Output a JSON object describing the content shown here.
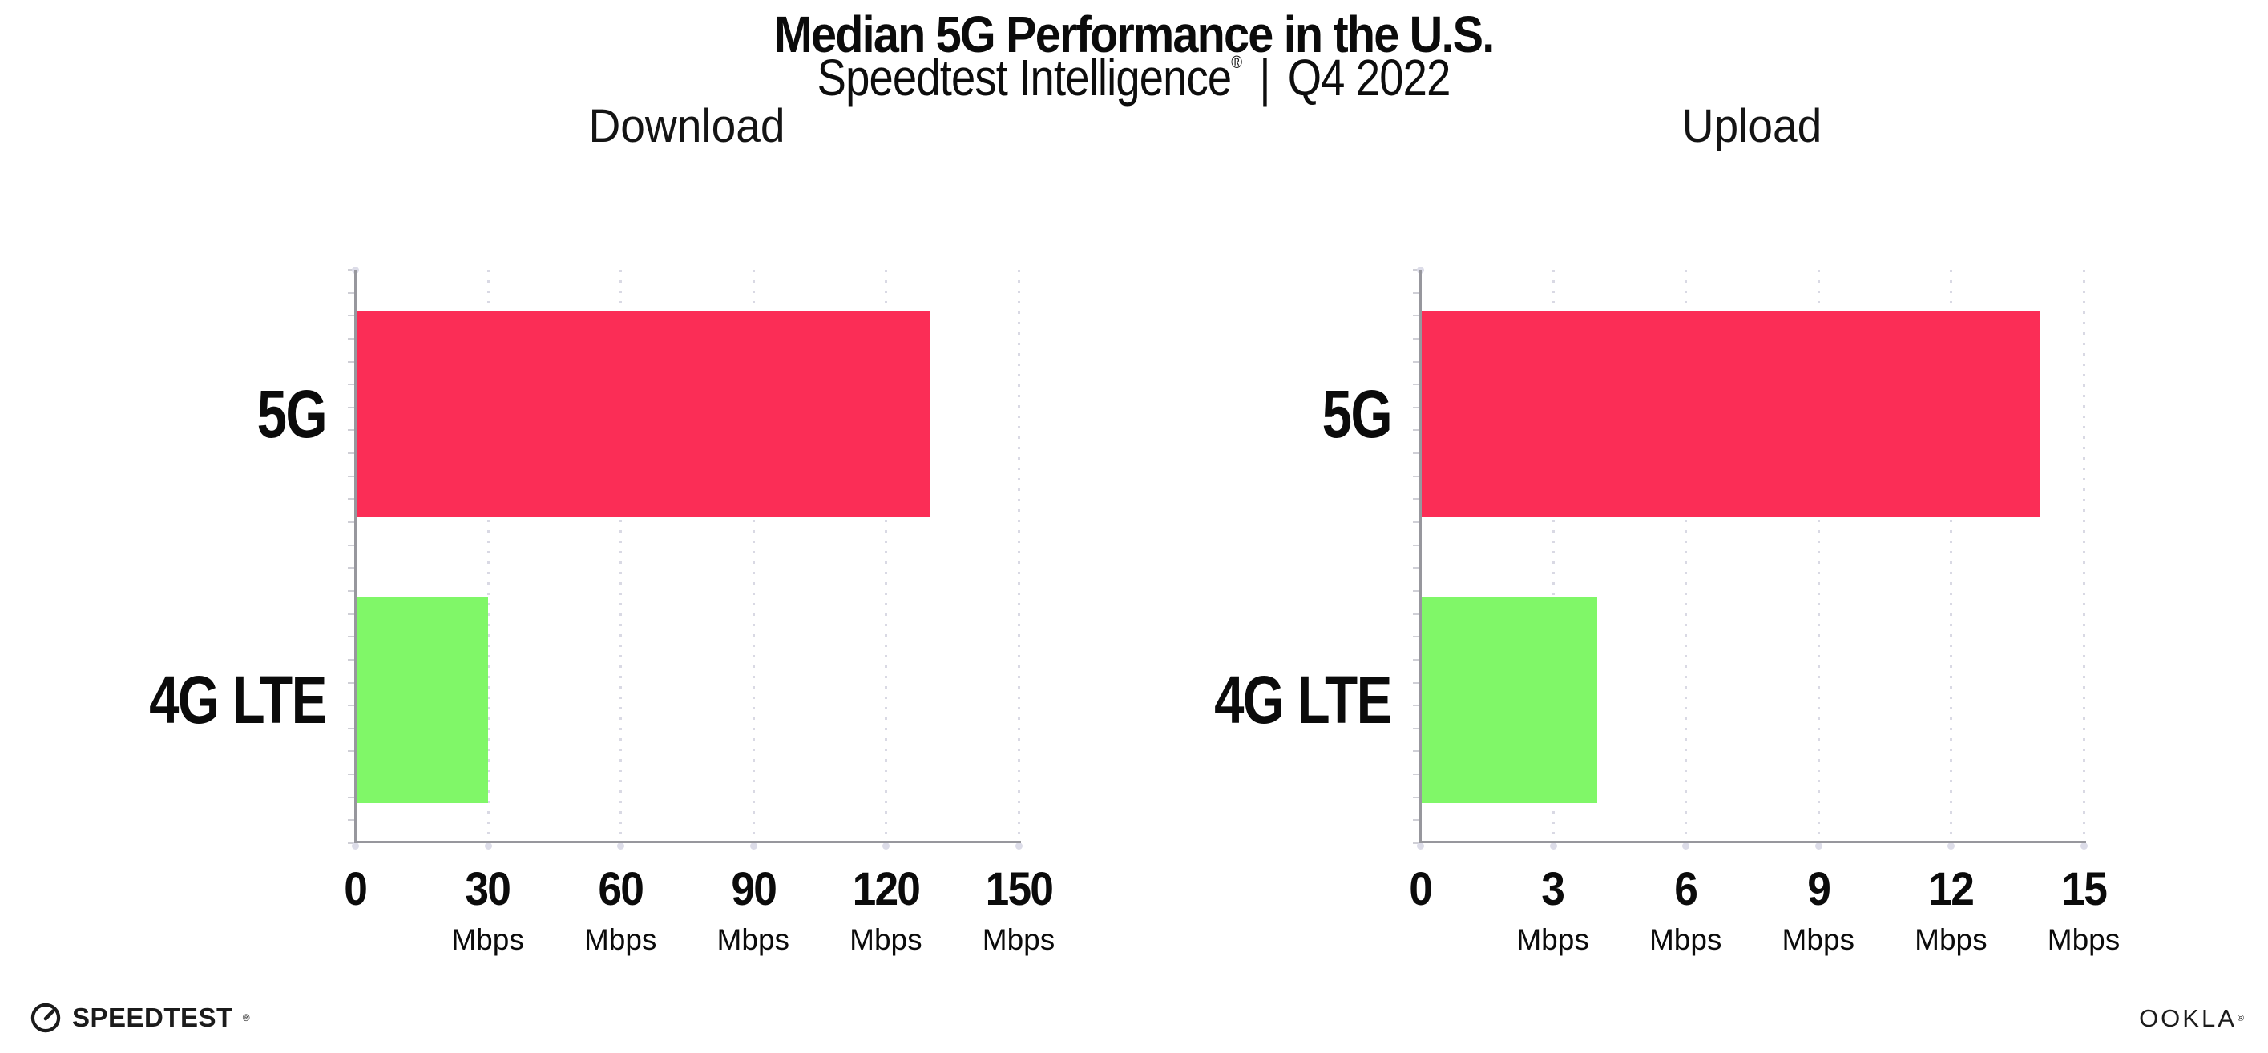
{
  "header": {
    "title": "Median 5G Performance in the U.S.",
    "subtitle_brand": "Speedtest Intelligence",
    "subtitle_reg": "®",
    "subtitle_sep": "|",
    "subtitle_period": "Q4 2022"
  },
  "chart_data": [
    {
      "type": "bar",
      "orientation": "horizontal",
      "title": "Download",
      "categories": [
        "5G",
        "4G LTE"
      ],
      "values": [
        130,
        30
      ],
      "unit": "Mbps",
      "xlim": [
        0,
        150
      ],
      "ticks": [
        0,
        30,
        60,
        90,
        120,
        150
      ],
      "bar_colors": [
        "#fb2d56",
        "#80f768"
      ],
      "grid": "vertical-dotted",
      "legend": "none"
    },
    {
      "type": "bar",
      "orientation": "horizontal",
      "title": "Upload",
      "categories": [
        "5G",
        "4G LTE"
      ],
      "values": [
        14,
        4
      ],
      "unit": "Mbps",
      "xlim": [
        0,
        15
      ],
      "ticks": [
        0,
        3,
        6,
        9,
        12,
        15
      ],
      "bar_colors": [
        "#fb2d56",
        "#80f768"
      ],
      "grid": "vertical-dotted",
      "legend": "none"
    }
  ],
  "footer": {
    "speedtest_label": "SPEEDTEST",
    "speedtest_reg": "®",
    "ookla_label": "OOKLA",
    "ookla_reg": "®"
  },
  "colors": {
    "bar_5g": "#fb2d56",
    "bar_4g_lte": "#80f768",
    "axis": "#97979d",
    "gridline": "#d9d9e4",
    "text": "#0b0b0b",
    "background": "#ffffff"
  }
}
